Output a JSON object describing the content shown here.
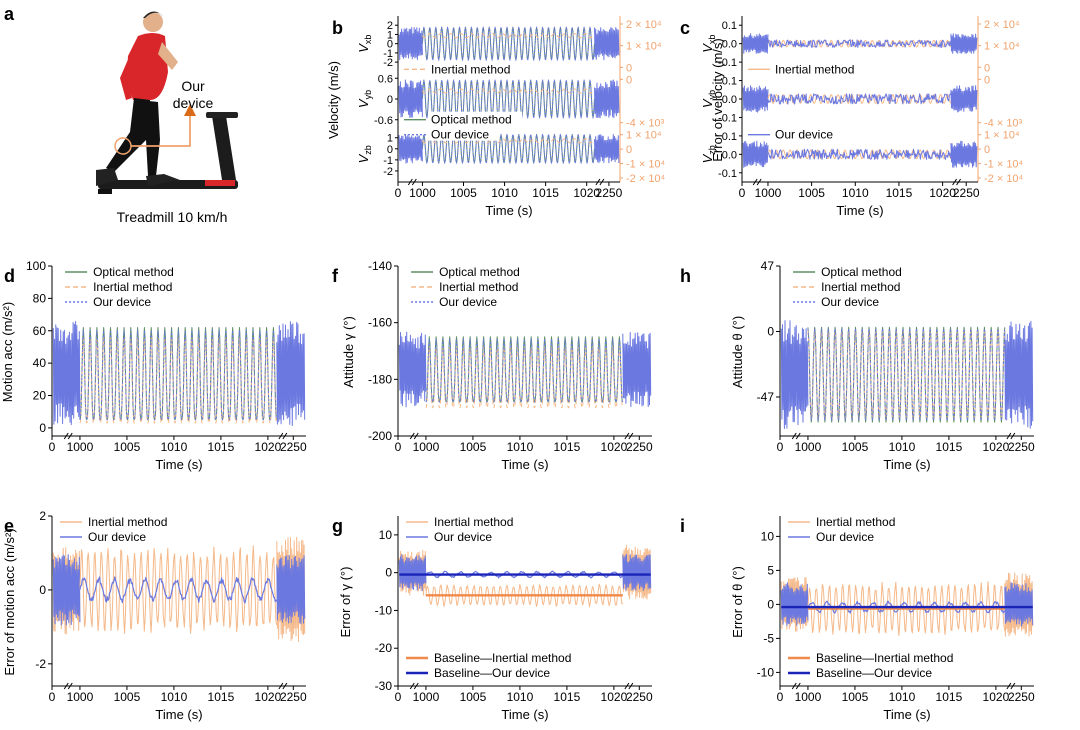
{
  "figure": {
    "photo": {
      "panel_letter": "a",
      "device_label_line1": "Our",
      "device_label_line2": "device",
      "caption": "Treadmill 10 km/h"
    }
  },
  "colors": {
    "optical": "#5d8f63",
    "inertial": "#f5b98a",
    "device": "#6b78e0",
    "baseline_inertial": "#f08a4b",
    "baseline_device": "#1a24b8",
    "orange_axis": "#f0a36c",
    "shirt": "#d9262b",
    "treadmill": "#1c1c1c"
  },
  "chart_data": [
    {
      "id": "b",
      "type": "line",
      "panel_letter": "b",
      "ylabel": "Velocity (m/s)",
      "xlabel": "Time (s)",
      "xticks": [
        "0",
        "1000",
        "1005",
        "1010",
        "1015",
        "1020",
        "2250"
      ],
      "subplots": [
        {
          "label": "V",
          "sub": "xb",
          "ylim": [
            -3,
            3
          ],
          "yticks": [
            "2",
            "1",
            "0",
            "-1",
            "-2"
          ],
          "yticks_right": [
            "2 × 10⁴",
            "1 × 10⁴",
            "0"
          ],
          "amplitude": 1.8
        },
        {
          "label": "V",
          "sub": "yb",
          "ylim": [
            -0.8,
            0.8
          ],
          "yticks": [
            "0.6",
            "0",
            "-0.6"
          ],
          "yticks_right": [
            "0",
            "-4 × 10³"
          ],
          "amplitude": 0.55
        },
        {
          "label": "V",
          "sub": "zb",
          "ylim": [
            -3,
            2
          ],
          "yticks": [
            "1",
            "0",
            "-1",
            "-2"
          ],
          "yticks_right": [
            "1 × 10⁴",
            "0",
            "-1 × 10⁴",
            "-2 × 10⁴"
          ],
          "amplitude": 1.3
        }
      ],
      "legend": [
        {
          "name": "Inertial method",
          "style": "dash",
          "color_key": "inertial"
        },
        {
          "name": "Optical method",
          "style": "solid",
          "color_key": "optical"
        },
        {
          "name": "Our device",
          "style": "dot",
          "color_key": "device"
        }
      ]
    },
    {
      "id": "c",
      "type": "line",
      "panel_letter": "c",
      "ylabel": "Error of velocity (m/s)",
      "xlabel": "Time (s)",
      "xticks": [
        "0",
        "1000",
        "1005",
        "1010",
        "1015",
        "1020",
        "2250"
      ],
      "subplots": [
        {
          "label": "V",
          "sub": "xb",
          "ylim": [
            -0.15,
            0.15
          ],
          "yticks": [
            "0.1",
            "0.0",
            "-0.1"
          ],
          "yticks_right": [
            "2 × 10⁴",
            "1 × 10⁴",
            "0"
          ],
          "amplitude": 0.03
        },
        {
          "label": "V",
          "sub": "yb",
          "ylim": [
            -0.15,
            0.15
          ],
          "yticks": [
            "0.1",
            "0.0",
            "-0.1"
          ],
          "yticks_right": [
            "0",
            "-4 × 10³"
          ],
          "amplitude": 0.04
        },
        {
          "label": "V",
          "sub": "zb",
          "ylim": [
            -0.15,
            0.15
          ],
          "yticks": [
            "0.1",
            "0.0",
            "-0.1"
          ],
          "yticks_right": [
            "1 × 10⁴",
            "0",
            "-1 × 10⁴",
            "-2 × 10⁴"
          ],
          "amplitude": 0.04
        }
      ],
      "legend": [
        {
          "name": "Inertial method",
          "style": "solid",
          "color_key": "inertial"
        },
        {
          "name": "Our device",
          "style": "solid",
          "color_key": "device"
        }
      ]
    },
    {
      "id": "d",
      "type": "line",
      "panel_letter": "d",
      "ylabel": "Motion acc (m/s²)",
      "xlabel": "Time (s)",
      "ylim": [
        -5,
        100
      ],
      "yticks": [
        100,
        80,
        60,
        40,
        20,
        0
      ],
      "xticks": [
        "0",
        "1000",
        "1005",
        "1010",
        "1015",
        "1020",
        "2250"
      ],
      "legend": [
        {
          "name": "Optical method",
          "style": "solid",
          "color_key": "optical"
        },
        {
          "name": "Inertial method",
          "style": "dash",
          "color_key": "inertial"
        },
        {
          "name": "Our device",
          "style": "dot",
          "color_key": "device"
        }
      ],
      "steady_range": [
        5,
        62
      ]
    },
    {
      "id": "f",
      "type": "line",
      "panel_letter": "f",
      "ylabel": "Attitude γ (°)",
      "xlabel": "Time (s)",
      "ylim": [
        -200,
        -140
      ],
      "yticks": [
        -140,
        -160,
        -180,
        -200
      ],
      "xticks": [
        "0",
        "1000",
        "1005",
        "1010",
        "1015",
        "1020",
        "2250"
      ],
      "legend": [
        {
          "name": "Optical method",
          "style": "solid",
          "color_key": "optical"
        },
        {
          "name": "Inertial method",
          "style": "dash",
          "color_key": "inertial"
        },
        {
          "name": "Our device",
          "style": "dot",
          "color_key": "device"
        }
      ],
      "steady_range": [
        -188,
        -165
      ]
    },
    {
      "id": "h",
      "type": "line",
      "panel_letter": "h",
      "ylabel": "Attitude θ (°)",
      "xlabel": "Time (s)",
      "ylim": [
        -75,
        47
      ],
      "yticks": [
        47,
        0,
        -47
      ],
      "xticks": [
        "0",
        "1000",
        "1005",
        "1010",
        "1015",
        "1020",
        "2250"
      ],
      "legend": [
        {
          "name": "Optical method",
          "style": "solid",
          "color_key": "optical"
        },
        {
          "name": "Inertial method",
          "style": "dash",
          "color_key": "inertial"
        },
        {
          "name": "Our device",
          "style": "dot",
          "color_key": "device"
        }
      ],
      "steady_range": [
        -65,
        3
      ]
    },
    {
      "id": "e",
      "type": "line",
      "panel_letter": "e",
      "ylabel": "Error of motion acc (m/s²)",
      "xlabel": "Time (s)",
      "ylim": [
        -2.6,
        2
      ],
      "yticks": [
        2,
        0,
        -2
      ],
      "xticks": [
        "0",
        "1000",
        "1005",
        "1010",
        "1015",
        "1020",
        "2250"
      ],
      "legend": [
        {
          "name": "Inertial method",
          "style": "solid",
          "color_key": "inertial"
        },
        {
          "name": "Our device",
          "style": "solid",
          "color_key": "device"
        }
      ]
    },
    {
      "id": "g",
      "type": "line",
      "panel_letter": "g",
      "ylabel": "Error of γ (°)",
      "xlabel": "Time (s)",
      "ylim": [
        -30,
        15
      ],
      "yticks": [
        10,
        0,
        -10,
        -20,
        -30
      ],
      "xticks": [
        "0",
        "1000",
        "1005",
        "1010",
        "1015",
        "1020",
        "2250"
      ],
      "legend": [
        {
          "name": "Inertial method",
          "style": "solid",
          "color_key": "inertial"
        },
        {
          "name": "Our device",
          "style": "solid",
          "color_key": "device"
        }
      ],
      "legend_bottom": [
        {
          "name": "Baseline—Inertial method",
          "color_key": "baseline_inertial"
        },
        {
          "name": "Baseline—Our device",
          "color_key": "baseline_device"
        }
      ]
    },
    {
      "id": "i",
      "type": "line",
      "panel_letter": "i",
      "ylabel": "Error of θ (°)",
      "xlabel": "Time (s)",
      "ylim": [
        -12,
        13
      ],
      "yticks": [
        10,
        5,
        0,
        -5,
        -10
      ],
      "xticks": [
        "0",
        "1000",
        "1005",
        "1010",
        "1015",
        "1020",
        "2250"
      ],
      "legend": [
        {
          "name": "Inertial method",
          "style": "solid",
          "color_key": "inertial"
        },
        {
          "name": "Our device",
          "style": "solid",
          "color_key": "device"
        }
      ],
      "legend_bottom": [
        {
          "name": "Baseline—Inertial method",
          "color_key": "baseline_inertial"
        },
        {
          "name": "Baseline—Our device",
          "color_key": "baseline_device"
        }
      ]
    }
  ]
}
